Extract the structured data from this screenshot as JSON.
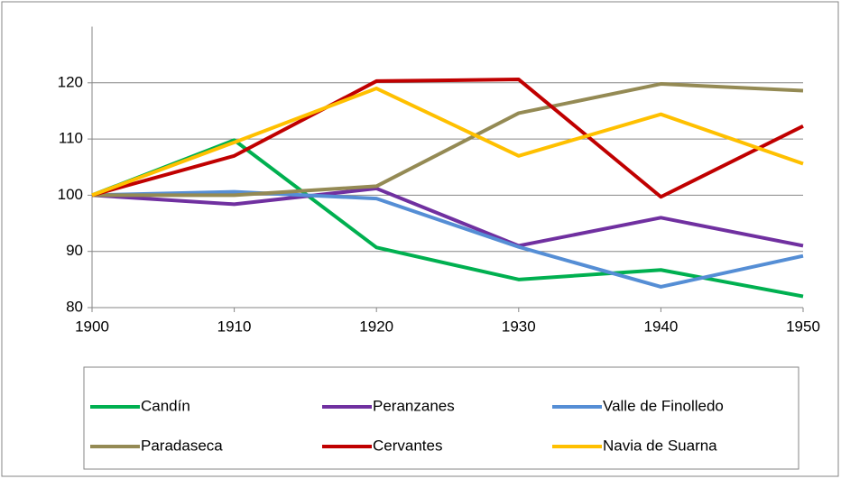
{
  "chart_data": {
    "type": "line",
    "x": [
      1900,
      1910,
      1920,
      1930,
      1940,
      1950
    ],
    "xlim": [
      1900,
      1950
    ],
    "xticks": [
      1900,
      1910,
      1920,
      1930,
      1940,
      1950
    ],
    "ylim": [
      80,
      130
    ],
    "yticks": [
      80,
      90,
      100,
      110,
      120
    ],
    "grid": true,
    "legend": "bottom",
    "series": [
      {
        "name": "Candín",
        "color": "#00b050",
        "values": [
          100,
          109.8,
          90.7,
          85,
          86.7,
          82
        ]
      },
      {
        "name": "Peranzanes",
        "color": "#7030a0",
        "values": [
          100,
          98.4,
          101.2,
          91,
          96,
          91
        ]
      },
      {
        "name": "Valle de Finolledo",
        "color": "#558ed5",
        "values": [
          100,
          100.6,
          99.4,
          90.8,
          83.7,
          89.2
        ]
      },
      {
        "name": "Paradaseca",
        "color": "#948a54",
        "values": [
          100,
          100,
          101.6,
          114.6,
          119.8,
          118.6
        ]
      },
      {
        "name": "Cervantes",
        "color": "#c00000",
        "values": [
          100,
          107,
          120.3,
          120.6,
          99.7,
          112.3
        ]
      },
      {
        "name": "Navia de Suarna",
        "color": "#ffc000",
        "values": [
          100,
          109.4,
          119,
          107,
          114.4,
          105.6
        ]
      }
    ]
  }
}
